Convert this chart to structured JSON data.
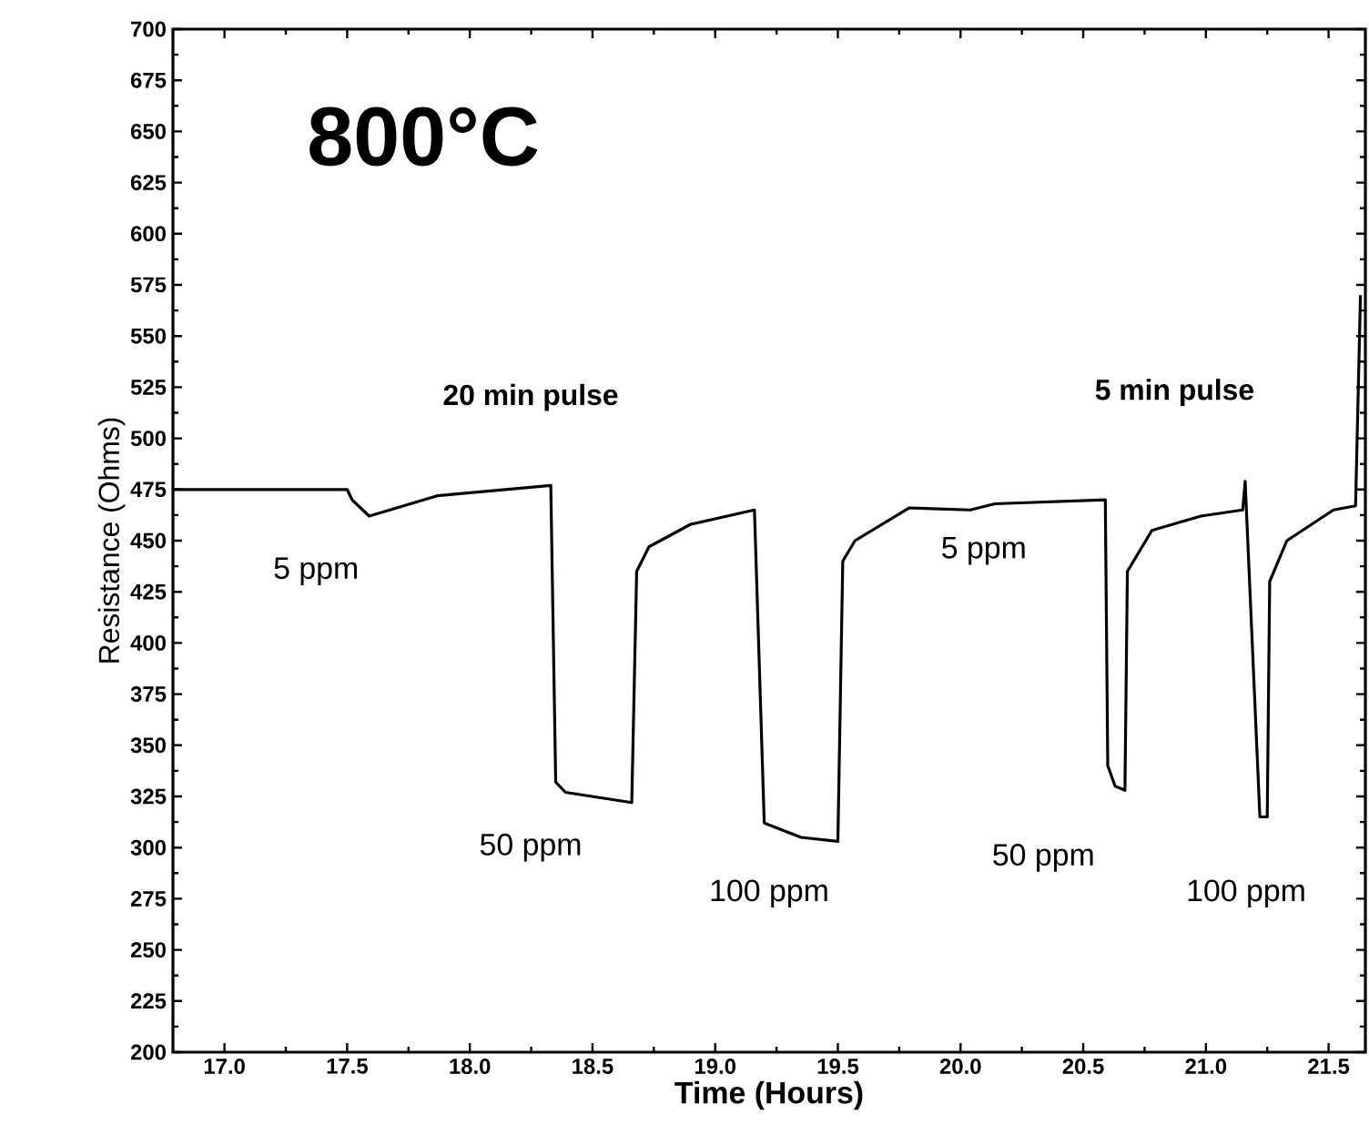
{
  "chart_data": {
    "type": "line",
    "xlabel": "Time (Hours)",
    "ylabel": "Resistance (Ohms)",
    "xlim": [
      16.79,
      21.65
    ],
    "ylim": [
      200,
      700
    ],
    "xticks": [
      {
        "value": 17,
        "label": "17.0"
      },
      {
        "value": 17.5,
        "label": "17.5"
      },
      {
        "value": 18,
        "label": "18.0"
      },
      {
        "value": 18.5,
        "label": "18.5"
      },
      {
        "value": 19,
        "label": "19.0"
      },
      {
        "value": 19.5,
        "label": "19.5"
      },
      {
        "value": 20,
        "label": "20.0"
      },
      {
        "value": 20.5,
        "label": "20.5"
      },
      {
        "value": 21,
        "label": "21.0"
      },
      {
        "value": 21.5,
        "label": "21.5"
      }
    ],
    "yticks": [
      200,
      225,
      250,
      275,
      300,
      325,
      350,
      375,
      400,
      425,
      450,
      475,
      500,
      525,
      550,
      575,
      600,
      625,
      650,
      675,
      700
    ],
    "series": [
      {
        "color": "#000000",
        "x": [
          16.79,
          17.5,
          17.52,
          17.59,
          17.87,
          18.33,
          18.35,
          18.39,
          18.66,
          18.68,
          18.73,
          18.9,
          19.16,
          19.2,
          19.35,
          19.5,
          19.52,
          19.57,
          19.79,
          20.04,
          20.14,
          20.59,
          20.6,
          20.63,
          20.67,
          20.68,
          20.78,
          20.98,
          21.15,
          21.16,
          21.22,
          21.25,
          21.26,
          21.33,
          21.52,
          21.61,
          21.63
        ],
        "values": [
          475,
          475,
          470,
          462,
          472,
          477,
          332,
          327,
          322,
          435,
          447,
          458,
          465,
          312,
          305,
          303,
          440,
          450,
          466,
          465,
          468,
          470,
          340,
          330,
          328,
          435,
          455,
          462,
          465,
          479,
          315,
          315,
          430,
          450,
          465,
          467,
          570
        ]
      }
    ],
    "annotations": [
      "800°C",
      "20 min pulse",
      "5 min pulse",
      "5 ppm",
      "50 ppm",
      "100 ppm",
      "5 ppm",
      "50 ppm",
      "100 ppm"
    ]
  }
}
